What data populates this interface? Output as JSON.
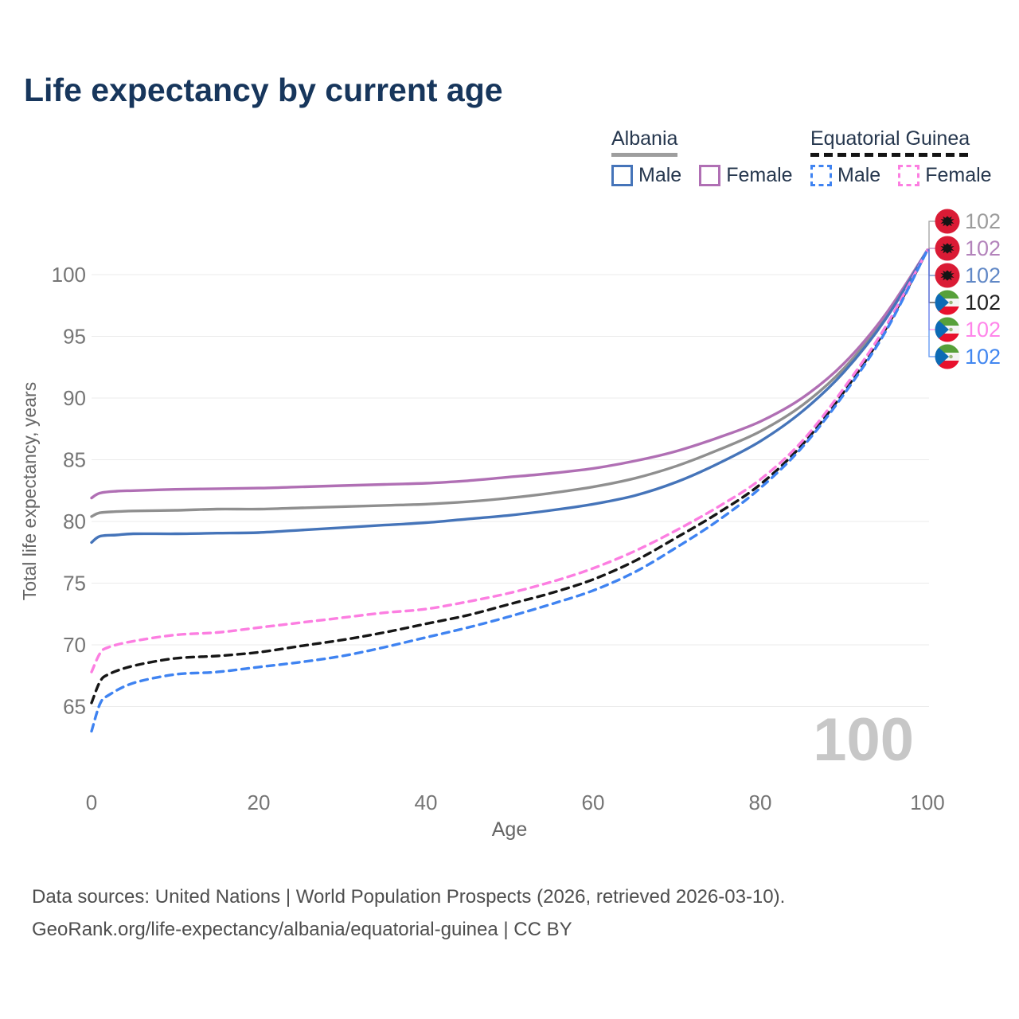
{
  "page": {
    "title": "Life expectancy by current age",
    "background_color": "#ffffff",
    "title_color": "#17365c"
  },
  "legend": {
    "groups": [
      {
        "name": "Albania",
        "line_style": "solid",
        "line_color": "#9e9e9e",
        "items": [
          {
            "label": "Male",
            "swatch_color": "#4574b9",
            "swatch_style": "solid"
          },
          {
            "label": "Female",
            "swatch_color": "#b06fb4",
            "swatch_style": "solid"
          }
        ]
      },
      {
        "name": "Equatorial Guinea",
        "line_style": "dashed",
        "line_color": "#141414",
        "items": [
          {
            "label": "Male",
            "swatch_color": "#3f83f1",
            "swatch_style": "dashed"
          },
          {
            "label": "Female",
            "swatch_color": "#fc7ee1",
            "swatch_style": "dashed"
          }
        ]
      }
    ]
  },
  "chart_data": {
    "type": "line",
    "title": "Life expectancy by current age",
    "xlabel": "Age",
    "ylabel": "Total life expectancy, years",
    "xlim": [
      0,
      100
    ],
    "ylim": [
      62.5,
      102.5
    ],
    "xticks": [
      0,
      20,
      40,
      60,
      80,
      100
    ],
    "yticks": [
      65,
      70,
      75,
      80,
      85,
      90,
      95,
      100
    ],
    "grid": "horizontal-only",
    "grid_color": "#ebebeb",
    "tick_label_color": "#757575",
    "axis_title_color": "#666666",
    "watermark": "100",
    "watermark_color": "#c7c7c7",
    "legend_position": "top-right",
    "series": [
      {
        "name": "Albania Total",
        "country": "Albania",
        "sex": "Total",
        "style": "solid",
        "color": "#8f8f8f",
        "label_color": "#9c9c9c",
        "end_label": "102",
        "points": [
          [
            0,
            80.4
          ],
          [
            1,
            80.7
          ],
          [
            3,
            80.8
          ],
          [
            5,
            80.85
          ],
          [
            10,
            80.9
          ],
          [
            15,
            81.0
          ],
          [
            20,
            81.0
          ],
          [
            25,
            81.1
          ],
          [
            30,
            81.2
          ],
          [
            35,
            81.3
          ],
          [
            40,
            81.4
          ],
          [
            45,
            81.6
          ],
          [
            50,
            81.9
          ],
          [
            55,
            82.3
          ],
          [
            60,
            82.8
          ],
          [
            65,
            83.5
          ],
          [
            70,
            84.5
          ],
          [
            75,
            85.8
          ],
          [
            80,
            87.3
          ],
          [
            85,
            89.4
          ],
          [
            90,
            92.4
          ],
          [
            95,
            96.6
          ],
          [
            100,
            102
          ]
        ]
      },
      {
        "name": "Albania Female",
        "country": "Albania",
        "sex": "Female",
        "style": "solid",
        "color": "#b06fb4",
        "label_color": "#b383bb",
        "end_label": "102",
        "points": [
          [
            0,
            81.9
          ],
          [
            1,
            82.3
          ],
          [
            3,
            82.45
          ],
          [
            5,
            82.5
          ],
          [
            10,
            82.6
          ],
          [
            15,
            82.65
          ],
          [
            20,
            82.7
          ],
          [
            25,
            82.8
          ],
          [
            30,
            82.9
          ],
          [
            35,
            83.0
          ],
          [
            40,
            83.1
          ],
          [
            45,
            83.3
          ],
          [
            50,
            83.6
          ],
          [
            55,
            83.9
          ],
          [
            60,
            84.3
          ],
          [
            65,
            84.9
          ],
          [
            70,
            85.7
          ],
          [
            75,
            86.8
          ],
          [
            80,
            88.1
          ],
          [
            85,
            90.0
          ],
          [
            90,
            92.8
          ],
          [
            95,
            96.8
          ],
          [
            100,
            102
          ]
        ]
      },
      {
        "name": "Albania Male",
        "country": "Albania",
        "sex": "Male",
        "style": "solid",
        "color": "#4574b9",
        "label_color": "#6188c6",
        "end_label": "102",
        "points": [
          [
            0,
            78.3
          ],
          [
            1,
            78.8
          ],
          [
            3,
            78.9
          ],
          [
            5,
            79.0
          ],
          [
            10,
            79.0
          ],
          [
            15,
            79.05
          ],
          [
            20,
            79.1
          ],
          [
            25,
            79.3
          ],
          [
            30,
            79.5
          ],
          [
            35,
            79.7
          ],
          [
            40,
            79.9
          ],
          [
            45,
            80.2
          ],
          [
            50,
            80.5
          ],
          [
            55,
            80.9
          ],
          [
            60,
            81.4
          ],
          [
            65,
            82.1
          ],
          [
            70,
            83.2
          ],
          [
            75,
            84.7
          ],
          [
            80,
            86.5
          ],
          [
            85,
            88.9
          ],
          [
            90,
            92.1
          ],
          [
            95,
            96.4
          ],
          [
            100,
            102
          ]
        ]
      },
      {
        "name": "Equatorial Guinea Total",
        "country": "Equatorial Guinea",
        "sex": "Total",
        "style": "dashed",
        "color": "#161616",
        "label_color": "#222222",
        "end_label": "102",
        "points": [
          [
            0,
            65.3
          ],
          [
            1,
            67.0
          ],
          [
            2,
            67.6
          ],
          [
            5,
            68.3
          ],
          [
            10,
            68.9
          ],
          [
            15,
            69.1
          ],
          [
            20,
            69.4
          ],
          [
            25,
            69.9
          ],
          [
            30,
            70.4
          ],
          [
            35,
            71.0
          ],
          [
            40,
            71.7
          ],
          [
            45,
            72.4
          ],
          [
            50,
            73.3
          ],
          [
            55,
            74.2
          ],
          [
            60,
            75.3
          ],
          [
            65,
            76.8
          ],
          [
            70,
            78.7
          ],
          [
            75,
            80.7
          ],
          [
            80,
            83.0
          ],
          [
            85,
            86.2
          ],
          [
            90,
            90.5
          ],
          [
            95,
            95.6
          ],
          [
            100,
            102
          ]
        ]
      },
      {
        "name": "Equatorial Guinea Female",
        "country": "Equatorial Guinea",
        "sex": "Female",
        "style": "dashed",
        "color": "#fc7ee1",
        "label_color": "#ff85ea",
        "end_label": "102",
        "points": [
          [
            0,
            67.8
          ],
          [
            1,
            69.3
          ],
          [
            2,
            69.8
          ],
          [
            5,
            70.3
          ],
          [
            10,
            70.8
          ],
          [
            15,
            71.0
          ],
          [
            20,
            71.4
          ],
          [
            25,
            71.8
          ],
          [
            30,
            72.2
          ],
          [
            35,
            72.6
          ],
          [
            40,
            72.9
          ],
          [
            45,
            73.5
          ],
          [
            50,
            74.2
          ],
          [
            55,
            75.1
          ],
          [
            60,
            76.2
          ],
          [
            65,
            77.6
          ],
          [
            70,
            79.3
          ],
          [
            75,
            81.2
          ],
          [
            80,
            83.4
          ],
          [
            85,
            86.5
          ],
          [
            90,
            90.8
          ],
          [
            95,
            95.8
          ],
          [
            100,
            102
          ]
        ]
      },
      {
        "name": "Equatorial Guinea Male",
        "country": "Equatorial Guinea",
        "sex": "Male",
        "style": "dashed",
        "color": "#3f83f1",
        "label_color": "#4287f0",
        "end_label": "102",
        "points": [
          [
            0,
            63.0
          ],
          [
            1,
            65.2
          ],
          [
            2,
            65.9
          ],
          [
            5,
            66.9
          ],
          [
            10,
            67.6
          ],
          [
            15,
            67.8
          ],
          [
            20,
            68.2
          ],
          [
            25,
            68.6
          ],
          [
            30,
            69.1
          ],
          [
            35,
            69.8
          ],
          [
            40,
            70.6
          ],
          [
            45,
            71.4
          ],
          [
            50,
            72.3
          ],
          [
            55,
            73.3
          ],
          [
            60,
            74.4
          ],
          [
            65,
            75.9
          ],
          [
            70,
            77.9
          ],
          [
            75,
            80.1
          ],
          [
            80,
            82.7
          ],
          [
            85,
            86.0
          ],
          [
            90,
            90.3
          ],
          [
            95,
            95.4
          ],
          [
            100,
            102
          ]
        ]
      }
    ]
  },
  "footer": {
    "line1": "Data sources: United Nations | World Population Prospects (2026, retrieved 2026-03-10).",
    "line2": "GeoRank.org/life-expectancy/albania/equatorial-guinea | CC BY"
  }
}
